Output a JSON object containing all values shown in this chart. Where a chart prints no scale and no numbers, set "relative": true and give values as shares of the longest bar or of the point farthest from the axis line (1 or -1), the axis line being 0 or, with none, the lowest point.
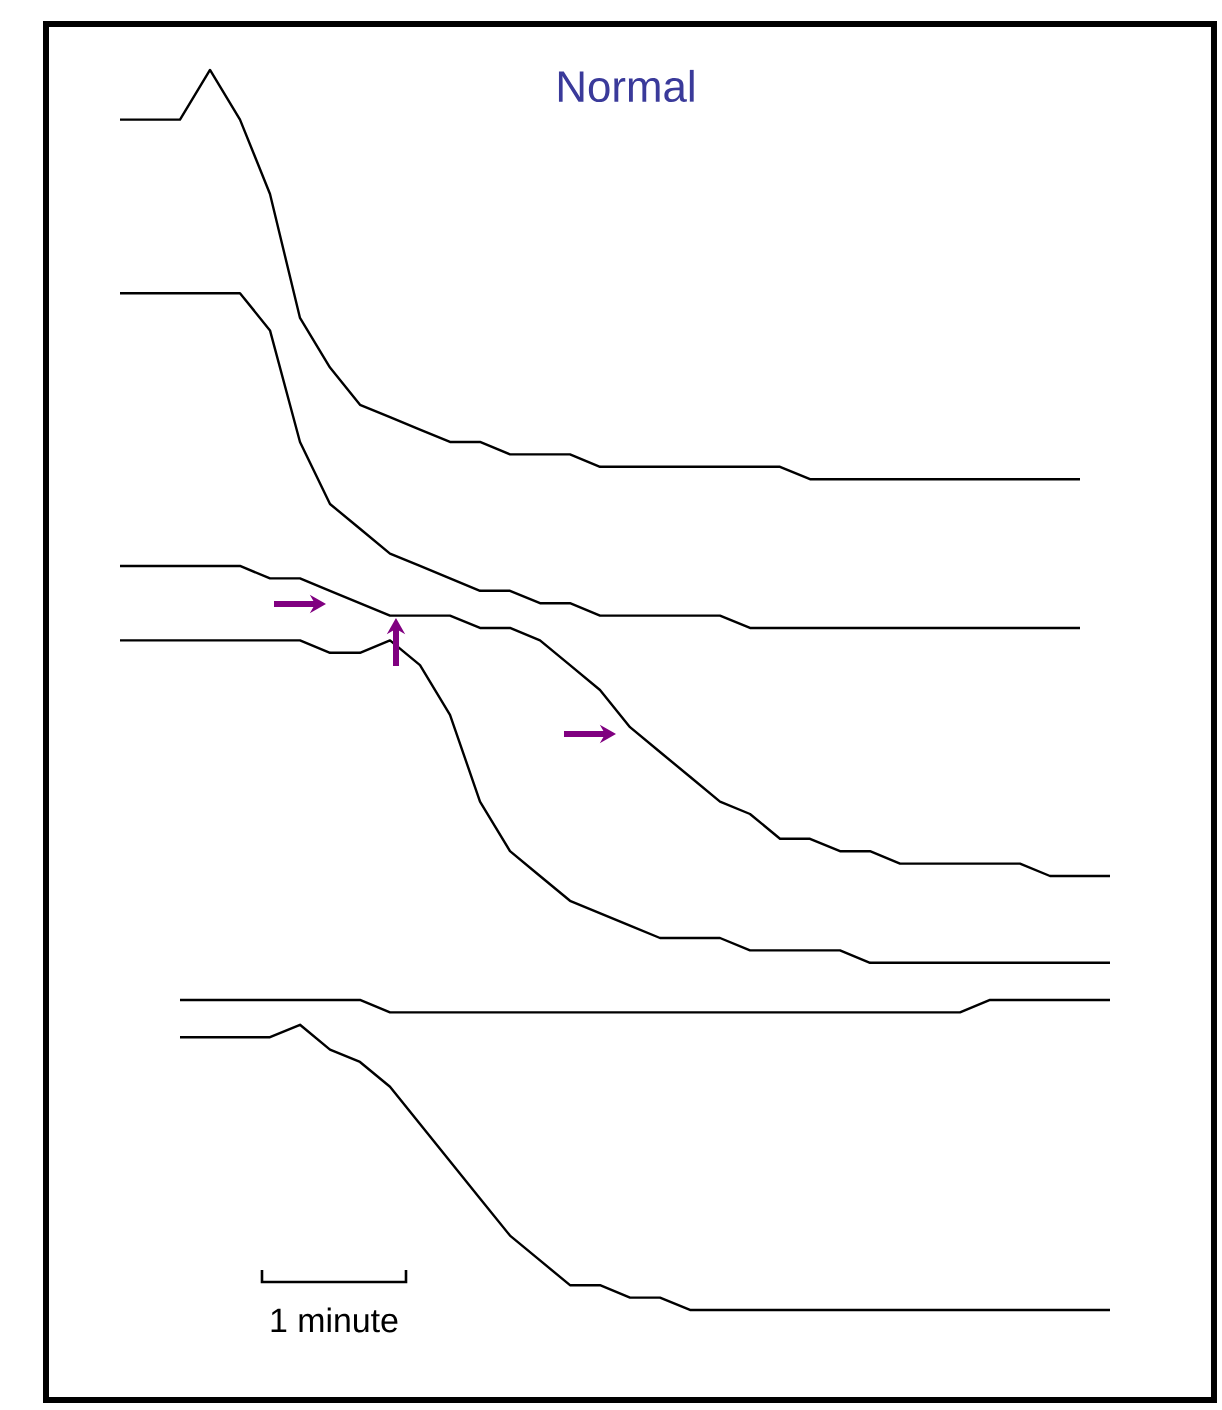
{
  "chart_data": {
    "type": "line",
    "title": "Normal",
    "relative": true,
    "annotations": [
      "1 minute"
    ],
    "categories": [
      null,
      null,
      null,
      null,
      null,
      null,
      null,
      null,
      null,
      null,
      null,
      null,
      null,
      null,
      null,
      null,
      null,
      null,
      null,
      null,
      null,
      null,
      null,
      null,
      null,
      null,
      null,
      null,
      null,
      null,
      null,
      null,
      null,
      null
    ],
    "series": [
      {
        "color": "#000000",
        "values": [
          0.96,
          0.96,
          0.96,
          1.0,
          0.96,
          0.9,
          0.8,
          0.76,
          0.73,
          0.72,
          0.71,
          0.7,
          0.7,
          0.69,
          0.69,
          0.69,
          0.68,
          0.68,
          0.68,
          0.68,
          0.68,
          0.68,
          0.68,
          0.67,
          0.67,
          0.67,
          0.67,
          0.67,
          0.67,
          0.67,
          0.67,
          0.67,
          0.67,
          null
        ]
      },
      {
        "color": "#000000",
        "values": [
          0.82,
          0.82,
          0.82,
          0.82,
          0.82,
          0.79,
          0.7,
          0.65,
          0.63,
          0.61,
          0.6,
          0.59,
          0.58,
          0.58,
          0.57,
          0.57,
          0.56,
          0.56,
          0.56,
          0.56,
          0.56,
          0.55,
          0.55,
          0.55,
          0.55,
          0.55,
          0.55,
          0.55,
          0.55,
          0.55,
          0.55,
          0.55,
          0.55,
          null
        ]
      },
      {
        "color": "#000000",
        "values": [
          0.6,
          0.6,
          0.6,
          0.6,
          0.6,
          0.59,
          0.59,
          0.58,
          0.57,
          0.56,
          0.56,
          0.56,
          0.55,
          0.55,
          0.54,
          0.52,
          0.5,
          0.47,
          0.45,
          0.43,
          0.41,
          0.4,
          0.38,
          0.38,
          0.37,
          0.37,
          0.36,
          0.36,
          0.36,
          0.36,
          0.36,
          0.35,
          0.35,
          0.35
        ]
      },
      {
        "color": "#000000",
        "values": [
          0.54,
          0.54,
          0.54,
          0.54,
          0.54,
          0.54,
          0.54,
          0.53,
          0.53,
          0.54,
          0.52,
          0.48,
          0.41,
          0.37,
          0.35,
          0.33,
          0.32,
          0.31,
          0.3,
          0.3,
          0.3,
          0.29,
          0.29,
          0.29,
          0.29,
          0.28,
          0.28,
          0.28,
          0.28,
          0.28,
          0.28,
          0.28,
          0.28,
          0.28
        ]
      },
      {
        "color": "#000000",
        "values": [
          null,
          null,
          0.25,
          0.25,
          0.25,
          0.25,
          0.25,
          0.25,
          0.25,
          0.24,
          0.24,
          0.24,
          0.24,
          0.24,
          0.24,
          0.24,
          0.24,
          0.24,
          0.24,
          0.24,
          0.24,
          0.24,
          0.24,
          0.24,
          0.24,
          0.24,
          0.24,
          0.24,
          0.24,
          0.25,
          0.25,
          0.25,
          0.25,
          0.25
        ]
      },
      {
        "color": "#000000",
        "values": [
          null,
          null,
          0.22,
          0.22,
          0.22,
          0.22,
          0.23,
          0.21,
          0.2,
          0.18,
          0.15,
          0.12,
          0.09,
          0.06,
          0.04,
          0.02,
          0.02,
          0.01,
          0.01,
          0.0,
          0.0,
          0.0,
          0.0,
          0.0,
          0.0,
          0.0,
          0.0,
          0.0,
          0.0,
          0.0,
          0.0,
          0.0,
          0.0,
          0.0
        ]
      }
    ]
  }
}
